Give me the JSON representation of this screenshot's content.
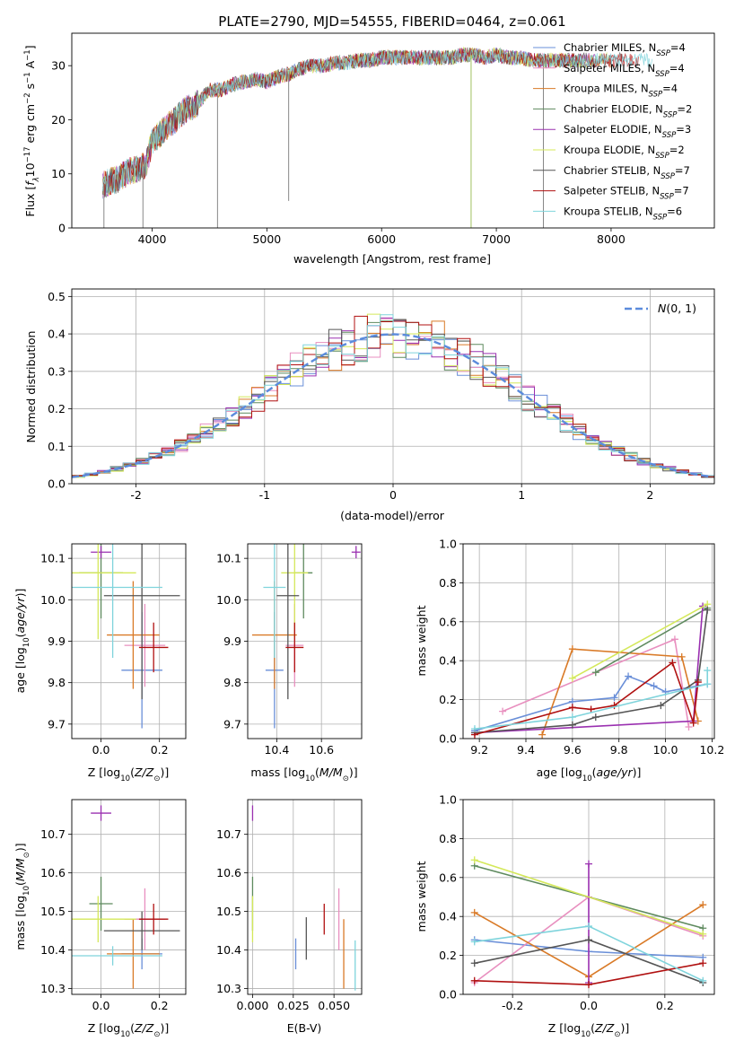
{
  "colors": {
    "Chabrier MILES": "#6a8fd8",
    "Salpeter MILES": "#e88fbf",
    "Kroupa MILES": "#d97a27",
    "Chabrier ELODIE": "#5e8a5e",
    "Salpeter ELODIE": "#9a30b0",
    "Kroupa ELODIE": "#d4e85a",
    "Chabrier STELIB": "#555555",
    "Salpeter STELIB": "#b01010",
    "Kroupa STELIB": "#7fd4dc"
  },
  "model_order": [
    "Chabrier MILES",
    "Salpeter MILES",
    "Kroupa MILES",
    "Chabrier ELODIE",
    "Salpeter ELODIE",
    "Kroupa ELODIE",
    "Chabrier STELIB",
    "Salpeter STELIB",
    "Kroupa STELIB"
  ],
  "chart_data": [
    {
      "id": "spectrum",
      "type": "line",
      "title": "PLATE=2790, MJD=54555, FIBERID=0464, z=0.061",
      "xlabel": "wavelength [Angstrom, rest frame]",
      "ylabel": "Flux [f_λ10^-17 erg cm^-2 s^-1 A^-1]",
      "xlim": [
        3300,
        8900
      ],
      "ylim": [
        0,
        36
      ],
      "xticks": [
        4000,
        5000,
        6000,
        7000,
        8000
      ],
      "yticks": [
        0,
        10,
        20,
        30
      ],
      "grid": false,
      "legend_position": "right",
      "series": [
        {
          "name": "Chabrier MILES, N_SSP=4"
        },
        {
          "name": "Salpeter MILES, N_SSP=4"
        },
        {
          "name": "Kroupa MILES, N_SSP=4"
        },
        {
          "name": "Chabrier ELODIE, N_SSP=2"
        },
        {
          "name": "Salpeter ELODIE, N_SSP=3"
        },
        {
          "name": "Kroupa ELODIE, N_SSP=2"
        },
        {
          "name": "Chabrier STELIB, N_SSP=7"
        },
        {
          "name": "Salpeter STELIB, N_SSP=7"
        },
        {
          "name": "Kroupa STELIB, N_SSP=6"
        }
      ],
      "continuum": {
        "x": [
          3570,
          3700,
          3800,
          3900,
          3950,
          4000,
          4100,
          4200,
          4300,
          4400,
          4500,
          4600,
          4700,
          4800,
          4900,
          5000,
          5100,
          5200,
          5300,
          5400,
          5500,
          5600,
          5700,
          5800,
          5900,
          6000,
          6100,
          6200,
          6300,
          6400,
          6500,
          6600,
          6700,
          6800,
          6900,
          7000,
          7100,
          7200,
          7300,
          7400
        ],
        "y": [
          8,
          9,
          10.5,
          11,
          12,
          16,
          18,
          20,
          22,
          23,
          25.5,
          25.5,
          26.5,
          27,
          27.5,
          27,
          28,
          28.5,
          29.5,
          30,
          30,
          30.5,
          30.5,
          31,
          31,
          31.5,
          31.5,
          31.5,
          31.5,
          31.5,
          31.5,
          31.5,
          32,
          32,
          31.5,
          32,
          31.5,
          31.5,
          31,
          31
        ]
      },
      "spikes": [
        {
          "x": 3580,
          "y_low": 0
        },
        {
          "x": 3920,
          "y_low": 0
        },
        {
          "x": 4570,
          "y_low": 0
        },
        {
          "x": 5190,
          "y_low": 5
        },
        {
          "x": 6780,
          "y_low": 0
        },
        {
          "x": 7410,
          "y_low": 0
        }
      ]
    },
    {
      "id": "residual-histogram",
      "type": "bar",
      "xlabel": "(data-model)/error",
      "ylabel": "Normed distribution",
      "xlim": [
        -2.5,
        2.5
      ],
      "ylim": [
        0,
        0.52
      ],
      "xticks": [
        -2,
        -1,
        0,
        1,
        2
      ],
      "yticks": [
        0.0,
        0.1,
        0.2,
        0.3,
        0.4,
        0.5
      ],
      "grid": true,
      "legend": [
        "N(0,1)"
      ],
      "legend_position": "top-right",
      "reference_curve": "standard normal pdf"
    },
    {
      "id": "age-vs-z",
      "type": "scatter",
      "xlabel": "Z [log10(Z/Z⊙)]",
      "ylabel": "age  [log10(age/yr)]",
      "xlim": [
        -0.1,
        0.29
      ],
      "ylim": [
        9.665,
        10.135
      ],
      "xticks": [
        0.0,
        0.2
      ],
      "yticks": [
        9.7,
        9.8,
        9.9,
        10.0,
        10.1
      ],
      "grid": true,
      "points": [
        {
          "model": "Chabrier MILES",
          "x": 0.14,
          "y": 9.83,
          "xerr": 0.07,
          "yerr": 0.14
        },
        {
          "model": "Salpeter MILES",
          "x": 0.15,
          "y": 9.89,
          "xerr": 0.07,
          "yerr": 0.1
        },
        {
          "model": "Kroupa MILES",
          "x": 0.11,
          "y": 9.915,
          "xerr": 0.09,
          "yerr": 0.13
        },
        {
          "model": "Chabrier ELODIE",
          "x": -0.0,
          "y": 10.065,
          "xerr": 0.075,
          "yerr": 0.11
        },
        {
          "model": "Salpeter ELODIE",
          "x": 0.0,
          "y": 10.115,
          "xerr": 0.035,
          "yerr": 0.015
        },
        {
          "model": "Kroupa ELODIE",
          "x": -0.01,
          "y": 10.065,
          "xerr": 0.13,
          "yerr": 0.16
        },
        {
          "model": "Chabrier STELIB",
          "x": 0.14,
          "y": 10.01,
          "xerr": 0.13,
          "yerr": 0.25
        },
        {
          "model": "Salpeter STELIB",
          "x": 0.18,
          "y": 9.885,
          "xerr": 0.05,
          "yerr": 0.06
        },
        {
          "model": "Kroupa STELIB",
          "x": 0.04,
          "y": 10.03,
          "xerr": 0.17,
          "yerr": 0.17
        }
      ]
    },
    {
      "id": "age-vs-mass",
      "type": "scatter",
      "xlabel": "mass [log10(M/M⊙)]",
      "ylabel": "",
      "xlim": [
        10.27,
        10.78
      ],
      "ylim": [
        9.665,
        10.135
      ],
      "xticks": [
        10.4,
        10.6
      ],
      "yticks": [
        9.7,
        9.8,
        9.9,
        10.0,
        10.1
      ],
      "grid": true,
      "points": [
        {
          "model": "Chabrier MILES",
          "x": 10.39,
          "y": 9.83,
          "xerr": 0.04,
          "yerr": 0.14
        },
        {
          "model": "Salpeter MILES",
          "x": 10.48,
          "y": 9.89,
          "xerr": 0.04,
          "yerr": 0.1
        },
        {
          "model": "Kroupa MILES",
          "x": 10.39,
          "y": 9.915,
          "xerr": 0.1,
          "yerr": 0.13
        },
        {
          "model": "Chabrier ELODIE",
          "x": 10.52,
          "y": 10.065,
          "xerr": 0.04,
          "yerr": 0.11
        },
        {
          "model": "Salpeter ELODIE",
          "x": 10.755,
          "y": 10.115,
          "xerr": 0.02,
          "yerr": 0.015
        },
        {
          "model": "Kroupa ELODIE",
          "x": 10.48,
          "y": 10.065,
          "xerr": 0.06,
          "yerr": 0.16
        },
        {
          "model": "Chabrier STELIB",
          "x": 10.45,
          "y": 10.01,
          "xerr": 0.05,
          "yerr": 0.25
        },
        {
          "model": "Salpeter STELIB",
          "x": 10.48,
          "y": 9.885,
          "xerr": 0.04,
          "yerr": 0.06
        },
        {
          "model": "Kroupa STELIB",
          "x": 10.39,
          "y": 10.03,
          "xerr": 0.05,
          "yerr": 0.17
        }
      ]
    },
    {
      "id": "mass-weight-vs-age",
      "type": "line",
      "xlabel": "age  [log10(age/yr)]",
      "ylabel": "mass weight",
      "xlim": [
        9.13,
        10.21
      ],
      "ylim": [
        0,
        1.0
      ],
      "xticks": [
        9.2,
        9.4,
        9.6,
        9.8,
        10.0,
        10.2
      ],
      "yticks": [
        0.0,
        0.2,
        0.4,
        0.6,
        0.8,
        1.0
      ],
      "grid": true,
      "series": [
        {
          "model": "Chabrier MILES",
          "x": [
            9.18,
            9.6,
            9.78,
            9.84,
            9.95,
            10.0,
            10.18
          ],
          "y": [
            0.04,
            0.19,
            0.21,
            0.32,
            0.27,
            0.24,
            0.28
          ]
        },
        {
          "model": "Salpeter MILES",
          "x": [
            9.3,
            10.04,
            10.1
          ],
          "y": [
            0.14,
            0.51,
            0.06
          ]
        },
        {
          "model": "Kroupa MILES",
          "x": [
            9.47,
            9.6,
            10.07,
            10.14
          ],
          "y": [
            0.02,
            0.46,
            0.42,
            0.09
          ]
        },
        {
          "model": "Chabrier ELODIE",
          "x": [
            9.7,
            10.18
          ],
          "y": [
            0.34,
            0.67
          ]
        },
        {
          "model": "Salpeter ELODIE",
          "x": [
            9.18,
            10.12,
            10.16
          ],
          "y": [
            0.03,
            0.09,
            0.68
          ]
        },
        {
          "model": "Kroupa ELODIE",
          "x": [
            9.6,
            10.18
          ],
          "y": [
            0.31,
            0.69
          ]
        },
        {
          "model": "Chabrier STELIB",
          "x": [
            9.18,
            9.6,
            9.7,
            9.98,
            10.14,
            10.18
          ],
          "y": [
            0.03,
            0.07,
            0.11,
            0.17,
            0.3,
            0.66
          ]
        },
        {
          "model": "Salpeter STELIB",
          "x": [
            9.18,
            9.6,
            9.68,
            9.78,
            10.03,
            10.12,
            10.14
          ],
          "y": [
            0.02,
            0.16,
            0.15,
            0.17,
            0.39,
            0.08,
            0.29
          ]
        },
        {
          "model": "Kroupa STELIB",
          "x": [
            9.18,
            9.6,
            10.18,
            10.18
          ],
          "y": [
            0.05,
            0.11,
            0.28,
            0.35
          ]
        }
      ]
    },
    {
      "id": "mass-vs-z",
      "type": "scatter",
      "xlabel": "Z [log10(Z/Z⊙)]",
      "ylabel": "mass [log10(M/M⊙)]",
      "xlim": [
        -0.1,
        0.29
      ],
      "ylim": [
        10.285,
        10.79
      ],
      "xticks": [
        0.0,
        0.2
      ],
      "yticks": [
        10.3,
        10.4,
        10.5,
        10.6,
        10.7
      ],
      "grid": true,
      "points": [
        {
          "model": "Chabrier MILES",
          "x": 0.14,
          "y": 10.39,
          "xerr": 0.07,
          "yerr": 0.04
        },
        {
          "model": "Salpeter MILES",
          "x": 0.15,
          "y": 10.48,
          "xerr": 0.07,
          "yerr": 0.08
        },
        {
          "model": "Kroupa MILES",
          "x": 0.11,
          "y": 10.39,
          "xerr": 0.09,
          "yerr": 0.09
        },
        {
          "model": "Chabrier ELODIE",
          "x": -0.0,
          "y": 10.52,
          "xerr": 0.04,
          "yerr": 0.07
        },
        {
          "model": "Salpeter ELODIE",
          "x": 0.0,
          "y": 10.755,
          "xerr": 0.035,
          "yerr": 0.02
        },
        {
          "model": "Kroupa ELODIE",
          "x": -0.01,
          "y": 10.48,
          "xerr": 0.13,
          "yerr": 0.06
        },
        {
          "model": "Chabrier STELIB",
          "x": 0.14,
          "y": 10.45,
          "xerr": 0.13,
          "yerr": 0.05
        },
        {
          "model": "Salpeter STELIB",
          "x": 0.18,
          "y": 10.48,
          "xerr": 0.05,
          "yerr": 0.04
        },
        {
          "model": "Kroupa STELIB",
          "x": 0.04,
          "y": 10.385,
          "xerr": 0.17,
          "yerr": 0.025
        }
      ]
    },
    {
      "id": "mass-vs-ebv",
      "type": "scatter",
      "xlabel": "E(B-V)",
      "ylabel": "",
      "xlim": [
        -0.003,
        0.067
      ],
      "ylim": [
        10.285,
        10.79
      ],
      "xticks": [
        0.0,
        0.025,
        0.05
      ],
      "xtick_labels": [
        "0.000",
        "0.025",
        "0.050"
      ],
      "yticks": [
        10.3,
        10.4,
        10.5,
        10.6,
        10.7
      ],
      "grid": true,
      "points": [
        {
          "model": "Chabrier MILES",
          "x": 0.0265,
          "y": 10.39,
          "yerr": 0.04
        },
        {
          "model": "Salpeter MILES",
          "x": 0.053,
          "y": 10.48,
          "yerr": 0.08
        },
        {
          "model": "Kroupa MILES",
          "x": 0.056,
          "y": 10.39,
          "yerr": 0.09
        },
        {
          "model": "Chabrier ELODIE",
          "x": 0.0,
          "y": 10.52,
          "yerr": 0.07
        },
        {
          "model": "Salpeter ELODIE",
          "x": 0.0,
          "y": 10.755,
          "yerr": 0.02
        },
        {
          "model": "Kroupa ELODIE",
          "x": 0.0,
          "y": 10.48,
          "yerr": 0.06
        },
        {
          "model": "Chabrier STELIB",
          "x": 0.033,
          "y": 10.43,
          "yerr": 0.055
        },
        {
          "model": "Salpeter STELIB",
          "x": 0.044,
          "y": 10.48,
          "yerr": 0.04
        },
        {
          "model": "Kroupa STELIB",
          "x": 0.063,
          "y": 10.36,
          "yerr": 0.065
        }
      ]
    },
    {
      "id": "mass-weight-vs-z",
      "type": "line",
      "xlabel": "Z [log10(Z/Z⊙)]",
      "ylabel": "mass weight",
      "xlim": [
        -0.33,
        0.33
      ],
      "ylim": [
        0,
        1.0
      ],
      "xticks": [
        -0.2,
        0.0,
        0.2
      ],
      "yticks": [
        0.0,
        0.2,
        0.4,
        0.6,
        0.8,
        1.0
      ],
      "grid": true,
      "series": [
        {
          "model": "Chabrier MILES",
          "x": [
            -0.3,
            0.0,
            0.3
          ],
          "y": [
            0.28,
            0.22,
            0.19
          ]
        },
        {
          "model": "Salpeter MILES",
          "x": [
            -0.3,
            0.0,
            0.3
          ],
          "y": [
            0.06,
            0.5,
            0.3
          ]
        },
        {
          "model": "Kroupa MILES",
          "x": [
            -0.3,
            0.0,
            0.3
          ],
          "y": [
            0.42,
            0.09,
            0.46
          ]
        },
        {
          "model": "Chabrier ELODIE",
          "x": [
            -0.3,
            0.3
          ],
          "y": [
            0.66,
            0.34
          ]
        },
        {
          "model": "Salpeter ELODIE",
          "x": [
            0.0,
            0.0
          ],
          "y": [
            0.67,
            0.06
          ]
        },
        {
          "model": "Kroupa ELODIE",
          "x": [
            -0.3,
            0.3
          ],
          "y": [
            0.69,
            0.31
          ]
        },
        {
          "model": "Chabrier STELIB",
          "x": [
            -0.3,
            0.0,
            0.3
          ],
          "y": [
            0.16,
            0.28,
            0.06
          ]
        },
        {
          "model": "Salpeter STELIB",
          "x": [
            -0.3,
            0.0,
            0.3
          ],
          "y": [
            0.07,
            0.05,
            0.16
          ]
        },
        {
          "model": "Kroupa STELIB",
          "x": [
            -0.3,
            0.0,
            0.3
          ],
          "y": [
            0.27,
            0.35,
            0.07
          ]
        }
      ]
    }
  ]
}
